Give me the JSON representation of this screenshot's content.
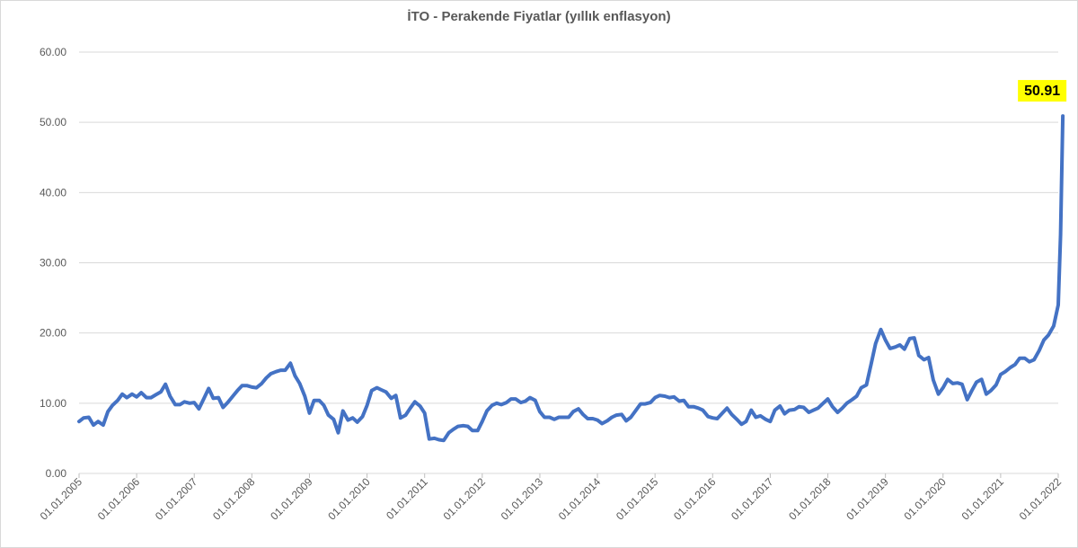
{
  "chart_data": {
    "type": "line",
    "title": "İTO - Perakende Fiyatlar (yıllık enflasyon)",
    "xlabel": "",
    "ylabel": "",
    "ylim": [
      0,
      60
    ],
    "yticks": [
      "0.00",
      "10.00",
      "20.00",
      "30.00",
      "40.00",
      "50.00",
      "60.00"
    ],
    "x_tick_labels": [
      "01.01.2005",
      "01.01.2006",
      "01.01.2007",
      "01.01.2008",
      "01.01.2009",
      "01.01.2010",
      "01.01.2011",
      "01.01.2012",
      "01.01.2013",
      "01.01.2014",
      "01.01.2015",
      "01.01.2016",
      "01.01.2017",
      "01.01.2018",
      "01.01.2019",
      "01.01.2020",
      "01.01.2021",
      "01.01.2022"
    ],
    "x_range_years": [
      2005,
      2022
    ],
    "series": [
      {
        "name": "İTO - Perakende Fiyatlar",
        "color": "#4472c4",
        "points": [
          [
            2005.0,
            7.4
          ],
          [
            2005.08,
            7.9
          ],
          [
            2005.17,
            8.0
          ],
          [
            2005.25,
            6.9
          ],
          [
            2005.33,
            7.4
          ],
          [
            2005.42,
            6.9
          ],
          [
            2005.5,
            8.8
          ],
          [
            2005.58,
            9.7
          ],
          [
            2005.67,
            10.4
          ],
          [
            2005.75,
            11.3
          ],
          [
            2005.83,
            10.8
          ],
          [
            2005.92,
            11.3
          ],
          [
            2006.0,
            10.9
          ],
          [
            2006.08,
            11.5
          ],
          [
            2006.17,
            10.8
          ],
          [
            2006.25,
            10.8
          ],
          [
            2006.33,
            11.2
          ],
          [
            2006.42,
            11.6
          ],
          [
            2006.5,
            12.7
          ],
          [
            2006.58,
            11.0
          ],
          [
            2006.67,
            9.8
          ],
          [
            2006.75,
            9.8
          ],
          [
            2006.83,
            10.2
          ],
          [
            2006.92,
            10.0
          ],
          [
            2007.0,
            10.1
          ],
          [
            2007.08,
            9.2
          ],
          [
            2007.17,
            10.7
          ],
          [
            2007.25,
            12.1
          ],
          [
            2007.33,
            10.7
          ],
          [
            2007.42,
            10.8
          ],
          [
            2007.5,
            9.4
          ],
          [
            2007.58,
            10.1
          ],
          [
            2007.67,
            11.0
          ],
          [
            2007.75,
            11.8
          ],
          [
            2007.83,
            12.5
          ],
          [
            2007.92,
            12.5
          ],
          [
            2008.0,
            12.3
          ],
          [
            2008.08,
            12.2
          ],
          [
            2008.17,
            12.8
          ],
          [
            2008.25,
            13.6
          ],
          [
            2008.33,
            14.2
          ],
          [
            2008.42,
            14.5
          ],
          [
            2008.5,
            14.7
          ],
          [
            2008.58,
            14.7
          ],
          [
            2008.67,
            15.7
          ],
          [
            2008.75,
            13.9
          ],
          [
            2008.83,
            12.8
          ],
          [
            2008.92,
            11.0
          ],
          [
            2009.0,
            8.6
          ],
          [
            2009.08,
            10.4
          ],
          [
            2009.17,
            10.4
          ],
          [
            2009.25,
            9.7
          ],
          [
            2009.33,
            8.3
          ],
          [
            2009.42,
            7.7
          ],
          [
            2009.5,
            5.8
          ],
          [
            2009.58,
            8.9
          ],
          [
            2009.67,
            7.6
          ],
          [
            2009.75,
            7.9
          ],
          [
            2009.83,
            7.3
          ],
          [
            2009.92,
            8.1
          ],
          [
            2010.0,
            9.7
          ],
          [
            2010.08,
            11.8
          ],
          [
            2010.17,
            12.2
          ],
          [
            2010.25,
            11.9
          ],
          [
            2010.33,
            11.6
          ],
          [
            2010.42,
            10.7
          ],
          [
            2010.5,
            11.1
          ],
          [
            2010.58,
            7.9
          ],
          [
            2010.67,
            8.3
          ],
          [
            2010.75,
            9.3
          ],
          [
            2010.83,
            10.2
          ],
          [
            2010.92,
            9.6
          ],
          [
            2011.0,
            8.6
          ],
          [
            2011.08,
            4.9
          ],
          [
            2011.17,
            5.0
          ],
          [
            2011.25,
            4.8
          ],
          [
            2011.33,
            4.7
          ],
          [
            2011.42,
            5.8
          ],
          [
            2011.5,
            6.3
          ],
          [
            2011.58,
            6.7
          ],
          [
            2011.67,
            6.8
          ],
          [
            2011.75,
            6.7
          ],
          [
            2011.83,
            6.1
          ],
          [
            2011.92,
            6.1
          ],
          [
            2012.0,
            7.4
          ],
          [
            2012.08,
            8.9
          ],
          [
            2012.17,
            9.7
          ],
          [
            2012.25,
            10.0
          ],
          [
            2012.33,
            9.8
          ],
          [
            2012.42,
            10.1
          ],
          [
            2012.5,
            10.6
          ],
          [
            2012.58,
            10.6
          ],
          [
            2012.67,
            10.1
          ],
          [
            2012.75,
            10.3
          ],
          [
            2012.83,
            10.8
          ],
          [
            2012.92,
            10.4
          ],
          [
            2013.0,
            8.8
          ],
          [
            2013.08,
            8.0
          ],
          [
            2013.17,
            8.0
          ],
          [
            2013.25,
            7.7
          ],
          [
            2013.33,
            8.0
          ],
          [
            2013.42,
            8.0
          ],
          [
            2013.5,
            8.0
          ],
          [
            2013.58,
            8.8
          ],
          [
            2013.67,
            9.2
          ],
          [
            2013.75,
            8.4
          ],
          [
            2013.83,
            7.8
          ],
          [
            2013.92,
            7.8
          ],
          [
            2014.0,
            7.6
          ],
          [
            2014.08,
            7.1
          ],
          [
            2014.17,
            7.5
          ],
          [
            2014.25,
            8.0
          ],
          [
            2014.33,
            8.3
          ],
          [
            2014.42,
            8.4
          ],
          [
            2014.5,
            7.5
          ],
          [
            2014.58,
            8.0
          ],
          [
            2014.67,
            9.0
          ],
          [
            2014.75,
            9.9
          ],
          [
            2014.83,
            9.9
          ],
          [
            2014.92,
            10.1
          ],
          [
            2015.0,
            10.8
          ],
          [
            2015.08,
            11.1
          ],
          [
            2015.17,
            11.0
          ],
          [
            2015.25,
            10.8
          ],
          [
            2015.33,
            10.9
          ],
          [
            2015.42,
            10.3
          ],
          [
            2015.5,
            10.4
          ],
          [
            2015.58,
            9.5
          ],
          [
            2015.67,
            9.5
          ],
          [
            2015.75,
            9.3
          ],
          [
            2015.83,
            9.0
          ],
          [
            2015.92,
            8.1
          ],
          [
            2016.0,
            7.9
          ],
          [
            2016.08,
            7.8
          ],
          [
            2016.17,
            8.6
          ],
          [
            2016.25,
            9.3
          ],
          [
            2016.33,
            8.4
          ],
          [
            2016.42,
            7.7
          ],
          [
            2016.5,
            7.0
          ],
          [
            2016.58,
            7.4
          ],
          [
            2016.67,
            9.0
          ],
          [
            2016.75,
            8.0
          ],
          [
            2016.83,
            8.2
          ],
          [
            2016.92,
            7.7
          ],
          [
            2017.0,
            7.4
          ],
          [
            2017.08,
            9.0
          ],
          [
            2017.17,
            9.6
          ],
          [
            2017.25,
            8.5
          ],
          [
            2017.33,
            9.0
          ],
          [
            2017.42,
            9.1
          ],
          [
            2017.5,
            9.5
          ],
          [
            2017.58,
            9.4
          ],
          [
            2017.67,
            8.7
          ],
          [
            2017.75,
            9.0
          ],
          [
            2017.83,
            9.3
          ],
          [
            2017.92,
            10.0
          ],
          [
            2018.0,
            10.6
          ],
          [
            2018.08,
            9.5
          ],
          [
            2018.17,
            8.7
          ],
          [
            2018.25,
            9.3
          ],
          [
            2018.33,
            10.0
          ],
          [
            2018.42,
            10.5
          ],
          [
            2018.5,
            11.0
          ],
          [
            2018.58,
            12.2
          ],
          [
            2018.67,
            12.6
          ],
          [
            2018.75,
            15.5
          ],
          [
            2018.83,
            18.5
          ],
          [
            2018.92,
            20.5
          ],
          [
            2019.0,
            19.0
          ],
          [
            2019.08,
            17.8
          ],
          [
            2019.17,
            18.0
          ],
          [
            2019.25,
            18.3
          ],
          [
            2019.33,
            17.7
          ],
          [
            2019.42,
            19.2
          ],
          [
            2019.5,
            19.3
          ],
          [
            2019.58,
            16.8
          ],
          [
            2019.67,
            16.2
          ],
          [
            2019.75,
            16.5
          ],
          [
            2019.83,
            13.3
          ],
          [
            2019.92,
            11.3
          ],
          [
            2020.0,
            12.2
          ],
          [
            2020.08,
            13.4
          ],
          [
            2020.17,
            12.8
          ],
          [
            2020.25,
            12.9
          ],
          [
            2020.33,
            12.7
          ],
          [
            2020.42,
            10.5
          ],
          [
            2020.5,
            11.8
          ],
          [
            2020.58,
            13.0
          ],
          [
            2020.67,
            13.4
          ],
          [
            2020.75,
            11.3
          ],
          [
            2020.83,
            11.8
          ],
          [
            2020.92,
            12.6
          ],
          [
            2021.0,
            14.1
          ],
          [
            2021.08,
            14.5
          ],
          [
            2021.17,
            15.1
          ],
          [
            2021.25,
            15.5
          ],
          [
            2021.33,
            16.4
          ],
          [
            2021.42,
            16.4
          ],
          [
            2021.5,
            15.9
          ],
          [
            2021.58,
            16.2
          ],
          [
            2021.67,
            17.5
          ],
          [
            2021.75,
            19.0
          ],
          [
            2021.83,
            19.7
          ],
          [
            2021.92,
            21.0
          ],
          [
            2022.0,
            24.0
          ],
          [
            2022.04,
            34.0
          ],
          [
            2022.08,
            50.91
          ]
        ]
      }
    ],
    "annotations": [
      {
        "label": "50.91",
        "value": 50.91,
        "x": 2022.08,
        "highlight_color": "#ffff00"
      }
    ],
    "grid": true,
    "legend": "none"
  }
}
